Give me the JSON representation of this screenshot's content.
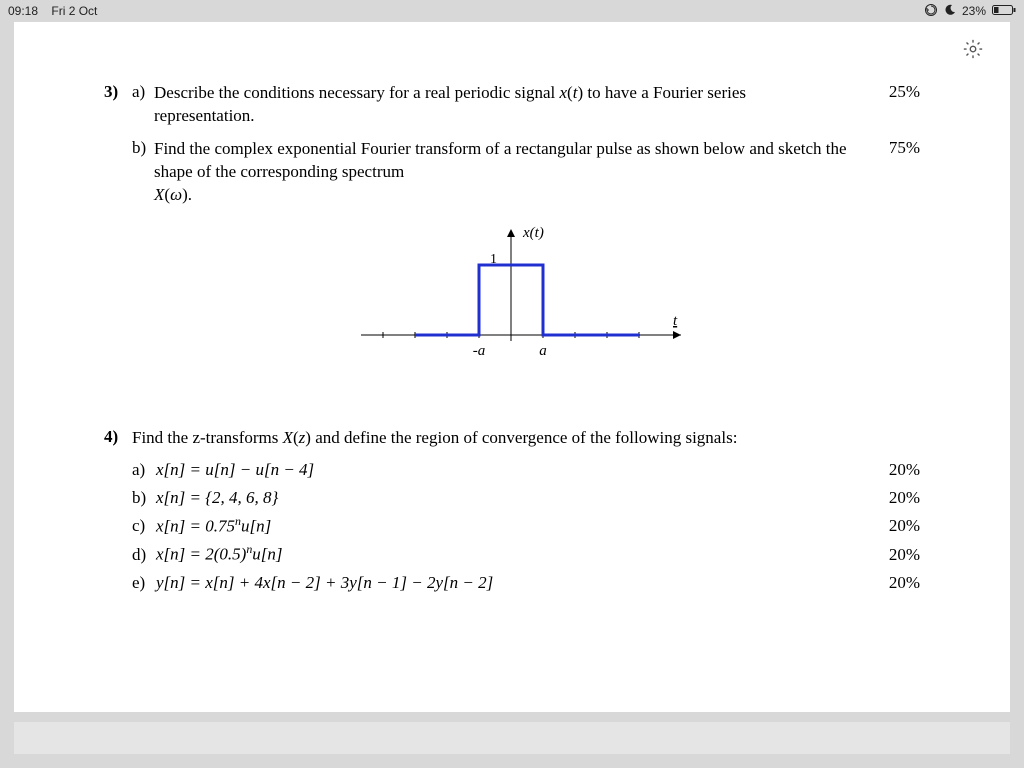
{
  "statusbar": {
    "time": "09:18",
    "date": "Fri 2 Oct",
    "battery_pct": "23%"
  },
  "q3": {
    "number": "3)",
    "a": {
      "label": "a)",
      "text_pre": "Describe the conditions necessary for a real periodic signal ",
      "var": "x",
      "arg": "t",
      "text_post": " to have a Fourier series representation.",
      "pct": "25%"
    },
    "b": {
      "label": "b)",
      "line1": "Find the complex exponential Fourier transform of a rectangular pulse as shown below and sketch the shape of the corresponding spectrum",
      "line2_var": "X",
      "line2_arg": "ω",
      "pct": "75%"
    },
    "figure": {
      "ylabel": "x(t)",
      "xlabel": "t",
      "neg_a": "-a",
      "pos_a": "a",
      "one": "1",
      "pulse_color": "#2030d0",
      "axis_color": "#000000",
      "tick_color": "#000000"
    }
  },
  "q4": {
    "number": "4)",
    "intro_pre": "Find the z-transforms ",
    "intro_var": "X",
    "intro_arg": "z",
    "intro_post": " and define the region of convergence of the following signals:",
    "a": {
      "label": "a)",
      "expr": "x[n] = u[n] − u[n − 4]",
      "pct": "20%"
    },
    "b": {
      "label": "b)",
      "expr": "x[n] = {2, 4, 6, 8}",
      "pct": "20%"
    },
    "c": {
      "label": "c)",
      "expr_html": "x[n] = 0.75<sup>n</sup>u[n]",
      "pct": "20%"
    },
    "d": {
      "label": "d)",
      "expr_html": "x[n] = 2(0.5)<sup>n</sup>u[n]",
      "pct": "20%"
    },
    "e": {
      "label": "e)",
      "expr": "y[n] = x[n] + 4x[n − 2] + 3y[n − 1] − 2y[n − 2]",
      "pct": "20%"
    }
  }
}
